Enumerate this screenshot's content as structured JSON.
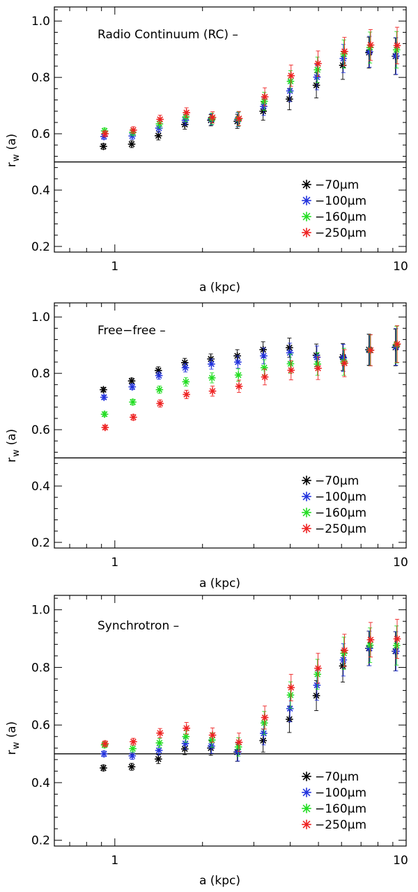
{
  "chart_data": [
    {
      "type": "scatter",
      "title": "Radio Continuum (RC) –",
      "xlabel": "a (kpc)",
      "ylabel_main": "r",
      "ylabel_sub": "w",
      "ylabel_tail": "(a)",
      "xscale": "log",
      "xlim": [
        0.62,
        10
      ],
      "ylim": [
        0.18,
        1.05
      ],
      "yticks": [
        "0.2",
        "0.4",
        "0.6",
        "0.8",
        "1.0"
      ],
      "xticks": [
        "1",
        "10"
      ],
      "reference_line": 0.5,
      "legend_position": "lower-right",
      "x": [
        0.92,
        1.15,
        1.42,
        1.75,
        2.15,
        2.65,
        3.25,
        4.0,
        4.95,
        6.1,
        7.5,
        9.25
      ],
      "series": [
        {
          "name": "−70μm",
          "color": "#000000",
          "values": [
            0.555,
            0.563,
            0.593,
            0.633,
            0.648,
            0.644,
            0.68,
            0.723,
            0.772,
            0.843,
            0.888,
            0.875
          ],
          "errors": [
            0.01,
            0.012,
            0.015,
            0.017,
            0.02,
            0.025,
            0.032,
            0.038,
            0.045,
            0.05,
            0.055,
            0.065
          ]
        },
        {
          "name": "−100μm",
          "color": "#2233dd",
          "values": [
            0.59,
            0.592,
            0.62,
            0.648,
            0.651,
            0.65,
            0.697,
            0.752,
            0.801,
            0.867,
            0.891,
            0.876
          ],
          "errors": [
            0.01,
            0.012,
            0.015,
            0.017,
            0.02,
            0.025,
            0.032,
            0.038,
            0.045,
            0.05,
            0.055,
            0.065
          ]
        },
        {
          "name": "−160μm",
          "color": "#22dd22",
          "values": [
            0.61,
            0.605,
            0.635,
            0.66,
            0.653,
            0.652,
            0.715,
            0.786,
            0.827,
            0.883,
            0.906,
            0.898
          ],
          "errors": [
            0.01,
            0.012,
            0.015,
            0.017,
            0.02,
            0.025,
            0.032,
            0.038,
            0.045,
            0.05,
            0.055,
            0.065
          ]
        },
        {
          "name": "−250μm",
          "color": "#ee2222",
          "values": [
            0.6,
            0.613,
            0.651,
            0.675,
            0.658,
            0.654,
            0.731,
            0.806,
            0.849,
            0.892,
            0.915,
            0.913
          ],
          "errors": [
            0.01,
            0.012,
            0.015,
            0.017,
            0.02,
            0.025,
            0.032,
            0.038,
            0.045,
            0.05,
            0.055,
            0.065
          ]
        }
      ]
    },
    {
      "type": "scatter",
      "title": "Free−free –",
      "xlabel": "a (kpc)",
      "ylabel_main": "r",
      "ylabel_sub": "w",
      "ylabel_tail": "(a)",
      "xscale": "log",
      "xlim": [
        0.62,
        10
      ],
      "ylim": [
        0.18,
        1.05
      ],
      "yticks": [
        "0.2",
        "0.4",
        "0.6",
        "0.8",
        "1.0"
      ],
      "xticks": [
        "1",
        "10"
      ],
      "reference_line": 0.5,
      "legend_position": "lower-right",
      "x": [
        0.92,
        1.15,
        1.42,
        1.75,
        2.15,
        2.65,
        3.25,
        4.0,
        4.95,
        6.1,
        7.5,
        9.25
      ],
      "series": [
        {
          "name": "−70μm",
          "color": "#000000",
          "values": [
            0.742,
            0.773,
            0.81,
            0.838,
            0.851,
            0.862,
            0.884,
            0.891,
            0.864,
            0.858,
            0.884,
            0.892
          ],
          "errors": [
            0.008,
            0.01,
            0.013,
            0.015,
            0.018,
            0.022,
            0.028,
            0.034,
            0.04,
            0.048,
            0.055,
            0.065
          ]
        },
        {
          "name": "−100μm",
          "color": "#2233dd",
          "values": [
            0.715,
            0.752,
            0.792,
            0.82,
            0.833,
            0.84,
            0.862,
            0.873,
            0.857,
            0.855,
            0.882,
            0.894
          ],
          "errors": [
            0.008,
            0.01,
            0.013,
            0.015,
            0.018,
            0.022,
            0.028,
            0.034,
            0.04,
            0.048,
            0.055,
            0.065
          ]
        },
        {
          "name": "−160μm",
          "color": "#22dd22",
          "values": [
            0.655,
            0.698,
            0.742,
            0.77,
            0.784,
            0.794,
            0.82,
            0.834,
            0.833,
            0.841,
            0.882,
            0.902
          ],
          "errors": [
            0.008,
            0.01,
            0.013,
            0.015,
            0.018,
            0.022,
            0.028,
            0.034,
            0.04,
            0.048,
            0.055,
            0.065
          ]
        },
        {
          "name": "−250μm",
          "color": "#ee2222",
          "values": [
            0.608,
            0.644,
            0.693,
            0.725,
            0.737,
            0.754,
            0.787,
            0.811,
            0.818,
            0.836,
            0.882,
            0.904
          ],
          "errors": [
            0.008,
            0.01,
            0.013,
            0.015,
            0.018,
            0.022,
            0.028,
            0.034,
            0.04,
            0.048,
            0.055,
            0.065
          ]
        }
      ]
    },
    {
      "type": "scatter",
      "title": "Synchrotron –",
      "xlabel": "a (kpc)",
      "ylabel_main": "r",
      "ylabel_sub": "w",
      "ylabel_tail": "(a)",
      "xscale": "log",
      "xlim": [
        0.62,
        10
      ],
      "ylim": [
        0.18,
        1.05
      ],
      "yticks": [
        "0.2",
        "0.4",
        "0.6",
        "0.8",
        "1.0"
      ],
      "xticks": [
        "1",
        "10"
      ],
      "reference_line": 0.5,
      "legend_position": "lower-right",
      "x": [
        0.92,
        1.15,
        1.42,
        1.75,
        2.15,
        2.65,
        3.25,
        4.0,
        4.95,
        6.1,
        7.5,
        9.25
      ],
      "series": [
        {
          "name": "−70μm",
          "color": "#000000",
          "values": [
            0.451,
            0.455,
            0.482,
            0.517,
            0.52,
            0.506,
            0.546,
            0.62,
            0.702,
            0.805,
            0.866,
            0.856
          ],
          "errors": [
            0.01,
            0.012,
            0.016,
            0.02,
            0.025,
            0.032,
            0.04,
            0.046,
            0.052,
            0.056,
            0.06,
            0.068
          ]
        },
        {
          "name": "−100μm",
          "color": "#2233dd",
          "values": [
            0.5,
            0.493,
            0.512,
            0.536,
            0.527,
            0.507,
            0.571,
            0.657,
            0.738,
            0.826,
            0.866,
            0.856
          ],
          "errors": [
            0.01,
            0.012,
            0.016,
            0.02,
            0.025,
            0.032,
            0.04,
            0.046,
            0.052,
            0.056,
            0.06,
            0.068
          ]
        },
        {
          "name": "−160μm",
          "color": "#22dd22",
          "values": [
            0.531,
            0.518,
            0.538,
            0.56,
            0.548,
            0.524,
            0.607,
            0.704,
            0.776,
            0.849,
            0.877,
            0.876
          ],
          "errors": [
            0.01,
            0.012,
            0.016,
            0.02,
            0.025,
            0.032,
            0.04,
            0.046,
            0.052,
            0.056,
            0.06,
            0.068
          ]
        },
        {
          "name": "−250μm",
          "color": "#ee2222",
          "values": [
            0.535,
            0.542,
            0.572,
            0.589,
            0.565,
            0.54,
            0.626,
            0.73,
            0.797,
            0.859,
            0.896,
            0.899
          ],
          "errors": [
            0.01,
            0.012,
            0.016,
            0.02,
            0.025,
            0.032,
            0.04,
            0.046,
            0.052,
            0.056,
            0.06,
            0.068
          ]
        }
      ]
    }
  ]
}
